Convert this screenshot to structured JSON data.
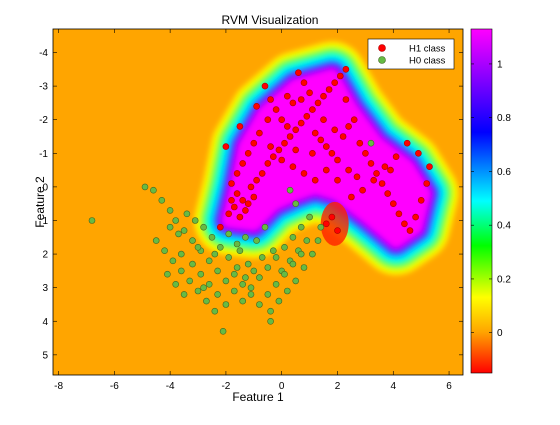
{
  "chart_data": {
    "type": "scatter",
    "title": "RVM Visualization",
    "xlabel": "Feature 1",
    "ylabel": "Feature 2",
    "xlim": [
      -8.2,
      6.5
    ],
    "ylim": [
      5.6,
      -4.7
    ],
    "y_axis_reversed": true,
    "xticks": [
      -8,
      -6,
      -4,
      -2,
      0,
      2,
      4,
      6
    ],
    "yticks": [
      -4,
      -3,
      -2,
      -1,
      0,
      1,
      2,
      3,
      4,
      5
    ],
    "background": "heatmap",
    "legend_position": "top-right",
    "colorbar": {
      "range": [
        -0.15,
        1.13
      ],
      "ticks": [
        0,
        0.2,
        0.4,
        0.6,
        0.8,
        1
      ],
      "colors": {
        "low": "#ff0000",
        "mid_low": "#ffa500",
        "mid": "#00ff00",
        "mid_high": "#0000ff",
        "high": "#ff00ff"
      }
    },
    "series": [
      {
        "name": "H1 class",
        "color": "#ff0000",
        "points": [
          [
            -1.9,
            0.8
          ],
          [
            -1.7,
            0.6
          ],
          [
            -1.5,
            0.9
          ],
          [
            -1.3,
            0.7
          ],
          [
            -1.8,
            0.4
          ],
          [
            -1.6,
            0.2
          ],
          [
            -1.4,
            0.4
          ],
          [
            -1.2,
            0.5
          ],
          [
            -1.0,
            0.3
          ],
          [
            -1.1,
            0.0
          ],
          [
            -0.9,
            -0.2
          ],
          [
            -0.7,
            -0.4
          ],
          [
            -0.5,
            -0.7
          ],
          [
            -0.3,
            -0.9
          ],
          [
            -0.1,
            -1.1
          ],
          [
            0.1,
            -1.3
          ],
          [
            0.3,
            -1.5
          ],
          [
            0.5,
            -1.7
          ],
          [
            0.7,
            -1.9
          ],
          [
            0.9,
            -2.1
          ],
          [
            1.1,
            -2.3
          ],
          [
            1.3,
            -2.5
          ],
          [
            1.5,
            -2.7
          ],
          [
            1.7,
            -2.9
          ],
          [
            1.9,
            -3.1
          ],
          [
            2.1,
            -3.3
          ],
          [
            2.3,
            -3.5
          ],
          [
            -0.6,
            -3.0
          ],
          [
            -0.4,
            -2.6
          ],
          [
            -0.2,
            -2.3
          ],
          [
            0.0,
            -2.0
          ],
          [
            0.2,
            -1.8
          ],
          [
            0.4,
            -2.5
          ],
          [
            0.6,
            -3.4
          ],
          [
            0.8,
            -3.1
          ],
          [
            1.0,
            -2.8
          ],
          [
            1.2,
            -1.6
          ],
          [
            1.4,
            -1.4
          ],
          [
            1.6,
            -1.2
          ],
          [
            1.8,
            -1.0
          ],
          [
            2.0,
            -0.8
          ],
          [
            2.2,
            -1.5
          ],
          [
            2.4,
            -1.8
          ],
          [
            2.6,
            -2.0
          ],
          [
            2.8,
            -1.3
          ],
          [
            3.0,
            -1.0
          ],
          [
            3.2,
            -0.7
          ],
          [
            3.4,
            -0.4
          ],
          [
            3.6,
            -0.1
          ],
          [
            3.8,
            0.2
          ],
          [
            4.0,
            0.5
          ],
          [
            4.2,
            0.8
          ],
          [
            4.4,
            1.1
          ],
          [
            4.6,
            1.3
          ],
          [
            4.8,
            0.9
          ],
          [
            5.0,
            0.4
          ],
          [
            5.2,
            -0.1
          ],
          [
            5.3,
            -0.6
          ],
          [
            4.9,
            -1.0
          ],
          [
            4.5,
            -1.3
          ],
          [
            4.1,
            -0.9
          ],
          [
            3.7,
            -0.6
          ],
          [
            3.3,
            -0.2
          ],
          [
            2.9,
            0.1
          ],
          [
            2.5,
            0.3
          ],
          [
            -0.8,
            -1.6
          ],
          [
            -1.0,
            -1.3
          ],
          [
            -1.2,
            -1.0
          ],
          [
            -1.4,
            -0.7
          ],
          [
            -1.6,
            -0.4
          ],
          [
            -1.8,
            -0.1
          ],
          [
            -2.0,
            -1.2
          ],
          [
            -0.4,
            -1.2
          ],
          [
            0.0,
            -0.8
          ],
          [
            0.4,
            -0.6
          ],
          [
            0.8,
            -0.4
          ],
          [
            1.2,
            -0.2
          ],
          [
            1.6,
            -0.5
          ],
          [
            2.0,
            -0.2
          ],
          [
            2.4,
            -0.5
          ],
          [
            0.2,
            -2.7
          ],
          [
            0.5,
            -1.1
          ],
          [
            1.1,
            -1.0
          ],
          [
            1.5,
            -2.0
          ],
          [
            1.9,
            -1.7
          ],
          [
            2.3,
            -2.6
          ],
          [
            -0.5,
            -2.0
          ],
          [
            -0.9,
            -2.4
          ],
          [
            1.8,
            0.9
          ],
          [
            2.0,
            1.3
          ],
          [
            1.6,
            1.1
          ],
          [
            -2.2,
            1.2
          ],
          [
            -1.5,
            -1.8
          ],
          [
            0.7,
            -2.6
          ],
          [
            2.7,
            -0.3
          ],
          [
            3.9,
            -0.5
          ]
        ]
      },
      {
        "name": "H0 class",
        "color": "#66bb44",
        "points": [
          [
            -6.8,
            1.0
          ],
          [
            -4.9,
            0.0
          ],
          [
            -4.6,
            0.1
          ],
          [
            -4.3,
            0.4
          ],
          [
            -4.0,
            0.7
          ],
          [
            -3.8,
            1.0
          ],
          [
            -3.5,
            1.3
          ],
          [
            -3.2,
            1.6
          ],
          [
            -2.9,
            1.9
          ],
          [
            -2.6,
            2.2
          ],
          [
            -2.3,
            2.5
          ],
          [
            -2.0,
            2.8
          ],
          [
            -1.7,
            3.1
          ],
          [
            -1.4,
            3.4
          ],
          [
            -1.1,
            3.0
          ],
          [
            -0.8,
            2.7
          ],
          [
            -0.5,
            2.4
          ],
          [
            -0.2,
            2.1
          ],
          [
            0.1,
            1.8
          ],
          [
            0.4,
            1.5
          ],
          [
            0.7,
            1.2
          ],
          [
            1.0,
            0.9
          ],
          [
            1.3,
            1.6
          ],
          [
            1.1,
            2.0
          ],
          [
            0.8,
            2.4
          ],
          [
            0.5,
            2.8
          ],
          [
            0.2,
            3.1
          ],
          [
            -0.1,
            3.4
          ],
          [
            -0.4,
            3.7
          ],
          [
            -2.1,
            4.3
          ],
          [
            -4.5,
            1.6
          ],
          [
            -4.2,
            1.9
          ],
          [
            -3.9,
            2.2
          ],
          [
            -3.6,
            2.5
          ],
          [
            -3.3,
            2.8
          ],
          [
            -3.0,
            3.1
          ],
          [
            -2.7,
            3.4
          ],
          [
            -2.4,
            3.7
          ],
          [
            -4.1,
            2.6
          ],
          [
            -3.8,
            2.9
          ],
          [
            -3.5,
            3.2
          ],
          [
            -1.5,
            1.9
          ],
          [
            -1.2,
            2.3
          ],
          [
            -0.9,
            1.6
          ],
          [
            -0.6,
            1.2
          ],
          [
            -0.3,
            1.9
          ],
          [
            0.0,
            2.5
          ],
          [
            0.3,
            2.2
          ],
          [
            0.6,
            1.9
          ],
          [
            0.9,
            1.6
          ],
          [
            -2.8,
            1.2
          ],
          [
            -2.5,
            1.5
          ],
          [
            -2.2,
            1.8
          ],
          [
            -1.9,
            2.1
          ],
          [
            -1.6,
            2.4
          ],
          [
            -1.3,
            2.7
          ],
          [
            -1.0,
            2.5
          ],
          [
            -0.7,
            2.1
          ],
          [
            -3.1,
            1.0
          ],
          [
            -3.4,
            0.8
          ],
          [
            -3.7,
            1.4
          ],
          [
            -4.0,
            1.2
          ],
          [
            -3.2,
            2.3
          ],
          [
            -2.9,
            2.6
          ],
          [
            -2.6,
            2.9
          ],
          [
            -2.3,
            3.2
          ],
          [
            -2.0,
            3.5
          ],
          [
            -1.7,
            2.6
          ],
          [
            -1.4,
            2.9
          ],
          [
            -1.1,
            3.2
          ],
          [
            -0.8,
            3.5
          ],
          [
            -0.5,
            3.2
          ],
          [
            -0.2,
            2.9
          ],
          [
            0.1,
            2.6
          ],
          [
            0.4,
            2.3
          ],
          [
            0.7,
            2.0
          ],
          [
            1.4,
            1.2
          ],
          [
            0.3,
            0.1
          ],
          [
            0.5,
            0.5
          ],
          [
            3.2,
            -1.3
          ],
          [
            -1.9,
            1.4
          ],
          [
            -1.6,
            1.7
          ],
          [
            -1.3,
            1.5
          ],
          [
            -2.4,
            2.0
          ],
          [
            -3.0,
            1.8
          ],
          [
            -3.6,
            2.0
          ],
          [
            -0.4,
            4.0
          ],
          [
            -2.8,
            3.0
          ]
        ]
      }
    ]
  }
}
